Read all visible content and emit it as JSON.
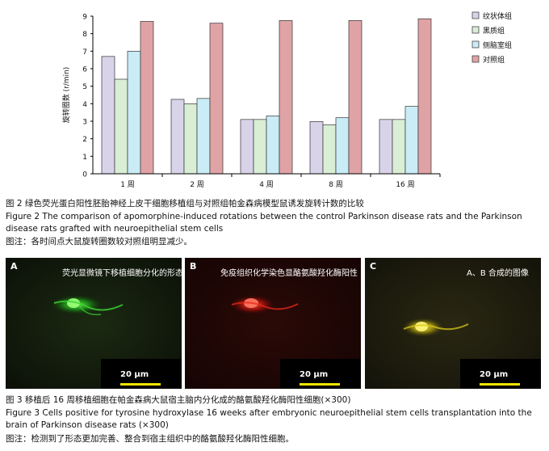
{
  "chart_data": {
    "type": "bar",
    "categories": [
      "1 周",
      "2 周",
      "4 周",
      "8 周",
      "16 周"
    ],
    "ylabel": "旋转圈数 (r/min)",
    "ylim": [
      0,
      9
    ],
    "yticks": [
      "0",
      "1",
      "2",
      "3",
      "4",
      "5",
      "6",
      "7",
      "8",
      "9"
    ],
    "legend_position": "right",
    "series": [
      {
        "name": "纹状体组",
        "color": "#d9d3ea",
        "values": [
          6.7,
          4.25,
          3.1,
          2.98,
          3.1
        ]
      },
      {
        "name": "黑质组",
        "color": "#d9eed5",
        "values": [
          5.4,
          4.0,
          3.1,
          2.8,
          3.1
        ]
      },
      {
        "name": "侧脑室组",
        "color": "#c9ecf6",
        "values": [
          7.0,
          4.3,
          3.3,
          3.2,
          3.85
        ]
      },
      {
        "name": "对照组",
        "color": "#dfa3a6",
        "values": [
          8.7,
          8.6,
          8.75,
          8.75,
          8.85
        ]
      }
    ]
  },
  "figure2": {
    "title_cn": "图 2   绿色荧光蛋白阳性胚胎神经上皮干细胞移植组与对照组帕金森病模型鼠诱发旋转计数的比较",
    "title_en": "Figure 2   The comparison of apomorphine-induced rotations between the control Parkinson disease rats and the Parkinson disease rats grafted with neuroepithelial stem cells",
    "note": "图注：各时间点大鼠旋转圈数较对照组明显减少。"
  },
  "figure3": {
    "panels": [
      {
        "letter": "A",
        "title": "荧光显微镜下移植细胞分化的形态",
        "scale": "20 μm",
        "color": "#2fd62a"
      },
      {
        "letter": "B",
        "title": "免疫组织化学染色显酪氨酸羟化酶阳性",
        "scale": "20 μm",
        "color": "#ff2a1a"
      },
      {
        "letter": "C",
        "title": "A、B 合成的图像",
        "scale": "20 μm",
        "color": "#e8d800"
      }
    ],
    "title_cn": "图 3   移植后 16 周移植细胞在帕金森病大鼠宿主脑内分化成的酪氨酸羟化酶阳性细胞(×300)",
    "title_en": "Figure 3   Cells positive for tyrosine hydroxylase 16 weeks after embryonic neuroepithelial stem cells transplantation into the brain of Parkinson disease rats (×300)",
    "note": "图注：检测到了形态更加完善、整合到宿主组织中的酪氨酸羟化酶阳性细胞。"
  }
}
